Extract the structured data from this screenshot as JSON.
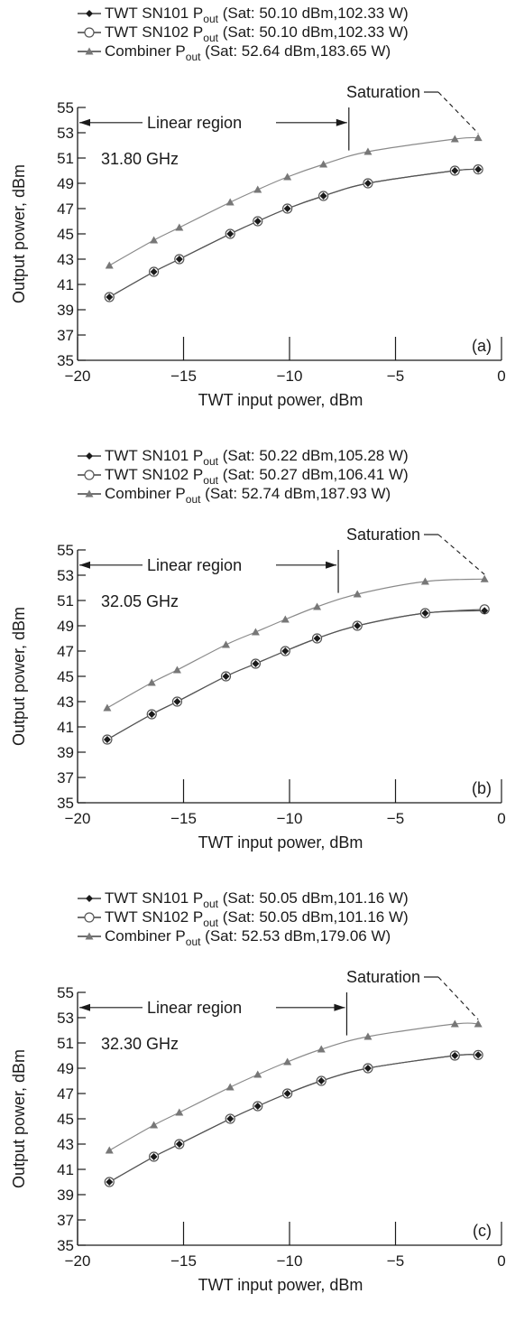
{
  "chart_data": [
    {
      "type": "line",
      "xlabel": "TWT input power, dBm",
      "ylabel": "Output power, dBm",
      "xlim": [
        -20,
        0
      ],
      "ylim": [
        35,
        55
      ],
      "xticks": [
        "−20",
        "−15",
        "−10",
        "−5",
        "0"
      ],
      "yticks": [
        "35",
        "37",
        "39",
        "41",
        "43",
        "45",
        "47",
        "49",
        "51",
        "53",
        "55"
      ],
      "frequency_label": "31.80 GHz",
      "panel_label": "(a)",
      "linear_region_label": "Linear region",
      "saturation_label": "Saturation",
      "linear_region_end": -7.2,
      "legend": [
        {
          "main": "TWT SN101 P",
          "sub": "out",
          "tail": " (Sat: 50.10 dBm,102.33 W)"
        },
        {
          "main": "TWT SN102 P",
          "sub": "out",
          "tail": " (Sat: 50.10 dBm,102.33 W)"
        },
        {
          "main": "Combiner P",
          "sub": "out",
          "tail": " (Sat: 52.64 dBm,183.65 W)"
        }
      ],
      "series": [
        {
          "marker": "diamond",
          "x": [
            -18.5,
            -16.4,
            -15.2,
            -12.8,
            -11.5,
            -10.1,
            -8.4,
            -6.3,
            -2.2,
            -1.1
          ],
          "y": [
            40.0,
            42.0,
            43.0,
            45.0,
            46.0,
            47.0,
            48.0,
            49.0,
            50.0,
            50.1
          ]
        },
        {
          "marker": "circle",
          "x": [
            -18.5,
            -16.4,
            -15.2,
            -12.8,
            -11.5,
            -10.1,
            -8.4,
            -6.3,
            -2.2,
            -1.1
          ],
          "y": [
            40.0,
            42.0,
            43.0,
            45.0,
            46.0,
            47.0,
            48.0,
            49.0,
            50.0,
            50.1
          ]
        },
        {
          "marker": "triangle",
          "x": [
            -18.5,
            -16.4,
            -15.2,
            -12.8,
            -11.5,
            -10.1,
            -8.4,
            -6.3,
            -2.2,
            -1.1
          ],
          "y": [
            42.5,
            44.5,
            45.5,
            47.5,
            48.5,
            49.5,
            50.5,
            51.5,
            52.5,
            52.6
          ]
        }
      ]
    },
    {
      "type": "line",
      "xlabel": "TWT input power, dBm",
      "ylabel": "Output power, dBm",
      "xlim": [
        -20,
        0
      ],
      "ylim": [
        35,
        55
      ],
      "xticks": [
        "−20",
        "−15",
        "−10",
        "−5",
        "0"
      ],
      "yticks": [
        "35",
        "37",
        "39",
        "41",
        "43",
        "45",
        "47",
        "49",
        "51",
        "53",
        "55"
      ],
      "frequency_label": "32.05 GHz",
      "panel_label": "(b)",
      "linear_region_label": "Linear region",
      "saturation_label": "Saturation",
      "linear_region_end": -7.7,
      "legend": [
        {
          "main": "TWT SN101 P",
          "sub": "out",
          "tail": " (Sat: 50.22 dBm,105.28 W)"
        },
        {
          "main": "TWT SN102 P",
          "sub": "out",
          "tail": " (Sat: 50.27 dBm,106.41 W)"
        },
        {
          "main": "Combiner P",
          "sub": "out",
          "tail": " (Sat: 52.74 dBm,187.93 W)"
        }
      ],
      "series": [
        {
          "marker": "diamond",
          "x": [
            -18.6,
            -16.5,
            -15.3,
            -13.0,
            -11.6,
            -10.2,
            -8.7,
            -6.8,
            -3.6,
            -0.8
          ],
          "y": [
            40.0,
            42.0,
            43.0,
            45.0,
            46.0,
            47.0,
            48.0,
            49.0,
            50.0,
            50.2
          ]
        },
        {
          "marker": "circle",
          "x": [
            -18.6,
            -16.5,
            -15.3,
            -13.0,
            -11.6,
            -10.2,
            -8.7,
            -6.8,
            -3.6,
            -0.8
          ],
          "y": [
            40.0,
            42.0,
            43.0,
            45.0,
            46.0,
            47.0,
            48.0,
            49.0,
            50.0,
            50.3
          ]
        },
        {
          "marker": "triangle",
          "x": [
            -18.6,
            -16.5,
            -15.3,
            -13.0,
            -11.6,
            -10.2,
            -8.7,
            -6.8,
            -3.6,
            -0.8
          ],
          "y": [
            42.5,
            44.5,
            45.5,
            47.5,
            48.5,
            49.5,
            50.5,
            51.5,
            52.5,
            52.7
          ]
        }
      ]
    },
    {
      "type": "line",
      "xlabel": "TWT input power, dBm",
      "ylabel": "Output power, dBm",
      "xlim": [
        -20,
        0
      ],
      "ylim": [
        35,
        55
      ],
      "xticks": [
        "−20",
        "−15",
        "−10",
        "−5",
        "0"
      ],
      "yticks": [
        "35",
        "37",
        "39",
        "41",
        "43",
        "45",
        "47",
        "49",
        "51",
        "53",
        "55"
      ],
      "frequency_label": "32.30 GHz",
      "panel_label": "(c)",
      "linear_region_label": "Linear region",
      "saturation_label": "Saturation",
      "linear_region_end": -7.3,
      "legend": [
        {
          "main": "TWT SN101 P",
          "sub": "out",
          "tail": " (Sat: 50.05 dBm,101.16 W)"
        },
        {
          "main": "TWT SN102 P",
          "sub": "out",
          "tail": " (Sat: 50.05 dBm,101.16 W)"
        },
        {
          "main": "Combiner P",
          "sub": "out",
          "tail": " (Sat: 52.53 dBm,179.06 W)"
        }
      ],
      "series": [
        {
          "marker": "diamond",
          "x": [
            -18.5,
            -16.4,
            -15.2,
            -12.8,
            -11.5,
            -10.1,
            -8.5,
            -6.3,
            -2.2,
            -1.1
          ],
          "y": [
            40.0,
            42.0,
            43.0,
            45.0,
            46.0,
            47.0,
            48.0,
            49.0,
            50.0,
            50.05
          ]
        },
        {
          "marker": "circle",
          "x": [
            -18.5,
            -16.4,
            -15.2,
            -12.8,
            -11.5,
            -10.1,
            -8.5,
            -6.3,
            -2.2,
            -1.1
          ],
          "y": [
            40.0,
            42.0,
            43.0,
            45.0,
            46.0,
            47.0,
            48.0,
            49.0,
            50.0,
            50.05
          ]
        },
        {
          "marker": "triangle",
          "x": [
            -18.5,
            -16.4,
            -15.2,
            -12.8,
            -11.5,
            -10.1,
            -8.5,
            -6.3,
            -2.2,
            -1.1
          ],
          "y": [
            42.5,
            44.5,
            45.5,
            47.5,
            48.5,
            49.5,
            50.5,
            51.5,
            52.5,
            52.5
          ]
        }
      ]
    }
  ]
}
